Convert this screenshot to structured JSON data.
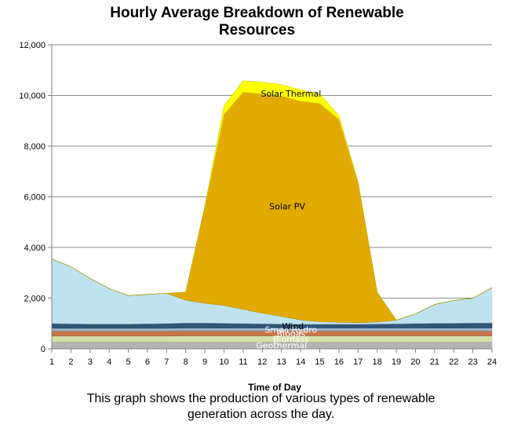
{
  "chart_data": {
    "type": "area",
    "title_line1": "Hourly Average Breakdown of Renewable",
    "title_line2": "Resources",
    "xlabel": "Time of Day",
    "ylabel": "",
    "ylim": [
      0,
      12000
    ],
    "yticks": [
      0,
      2000,
      4000,
      6000,
      8000,
      10000,
      12000
    ],
    "ytick_labels": [
      "0",
      "2,000",
      "4,000",
      "6,000",
      "8,000",
      "10,000",
      "12,000"
    ],
    "x": [
      1,
      2,
      3,
      4,
      5,
      6,
      7,
      8,
      9,
      10,
      11,
      12,
      13,
      14,
      15,
      16,
      17,
      18,
      19,
      20,
      21,
      22,
      23,
      24
    ],
    "grid": true,
    "stacked": true,
    "series": [
      {
        "name": "Geothermal",
        "color": "#b3b3b3",
        "label_color": "#ffffff",
        "label_x": 13,
        "values": [
          270,
          270,
          270,
          270,
          270,
          270,
          270,
          270,
          270,
          270,
          270,
          270,
          270,
          270,
          270,
          270,
          270,
          270,
          270,
          270,
          270,
          270,
          270,
          270
        ]
      },
      {
        "name": "Biomass",
        "color": "#d4e0a8",
        "label_color": "#ffffff",
        "label_x": 13.5,
        "values": [
          230,
          230,
          230,
          230,
          230,
          230,
          230,
          240,
          240,
          240,
          240,
          240,
          240,
          240,
          240,
          240,
          240,
          240,
          240,
          240,
          240,
          240,
          240,
          240
        ]
      },
      {
        "name": "Biogas",
        "color": "#c8744a",
        "label_color": "#ffffff",
        "label_x": 13.5,
        "values": [
          200,
          200,
          200,
          200,
          200,
          200,
          200,
          200,
          200,
          200,
          200,
          200,
          200,
          200,
          200,
          200,
          200,
          200,
          200,
          200,
          200,
          200,
          200,
          200
        ]
      },
      {
        "name": "Small Hydro",
        "color": "#9ab6c9",
        "label_color": "#ffffff",
        "label_x": 13.5,
        "values": [
          110,
          110,
          110,
          110,
          110,
          110,
          110,
          110,
          110,
          110,
          110,
          110,
          110,
          110,
          110,
          110,
          110,
          110,
          110,
          110,
          110,
          110,
          110,
          110
        ]
      },
      {
        "name": "Wind",
        "color": "#2f5579",
        "label_color": "#000000",
        "label_x": 13.6,
        "values": [
          190,
          180,
          170,
          170,
          170,
          180,
          190,
          200,
          200,
          190,
          180,
          170,
          160,
          150,
          150,
          150,
          150,
          160,
          170,
          180,
          190,
          190,
          200,
          200
        ]
      },
      {
        "name": "",
        "color": "#bfe3ee",
        "label_color": "#000000",
        "values": [
          2550,
          2250,
          1800,
          1400,
          1120,
          1160,
          1190,
          900,
          780,
          700,
          560,
          420,
          300,
          170,
          100,
          80,
          60,
          80,
          140,
          380,
          740,
          900,
          970,
          1400
        ]
      },
      {
        "name": "Solar PV",
        "color": "#e2aa00",
        "label_color": "#000000",
        "label_x": 13.3,
        "label_y": 5500,
        "values": [
          0,
          0,
          0,
          0,
          0,
          0,
          0,
          320,
          3830,
          7540,
          8570,
          8650,
          8700,
          8630,
          8610,
          8000,
          5540,
          1170,
          0,
          0,
          0,
          0,
          0,
          0
        ]
      },
      {
        "name": "Solar Thermal",
        "color": "#ffff00",
        "label_color": "#000000",
        "label_x": 13.5,
        "label_y": 9950,
        "values": [
          0,
          0,
          0,
          0,
          0,
          0,
          0,
          0,
          0,
          350,
          450,
          460,
          450,
          450,
          380,
          150,
          0,
          0,
          0,
          0,
          0,
          0,
          0,
          0
        ]
      }
    ]
  },
  "caption_line1": "This graph shows the production of various types of renewable",
  "caption_line2": "generation across the day."
}
